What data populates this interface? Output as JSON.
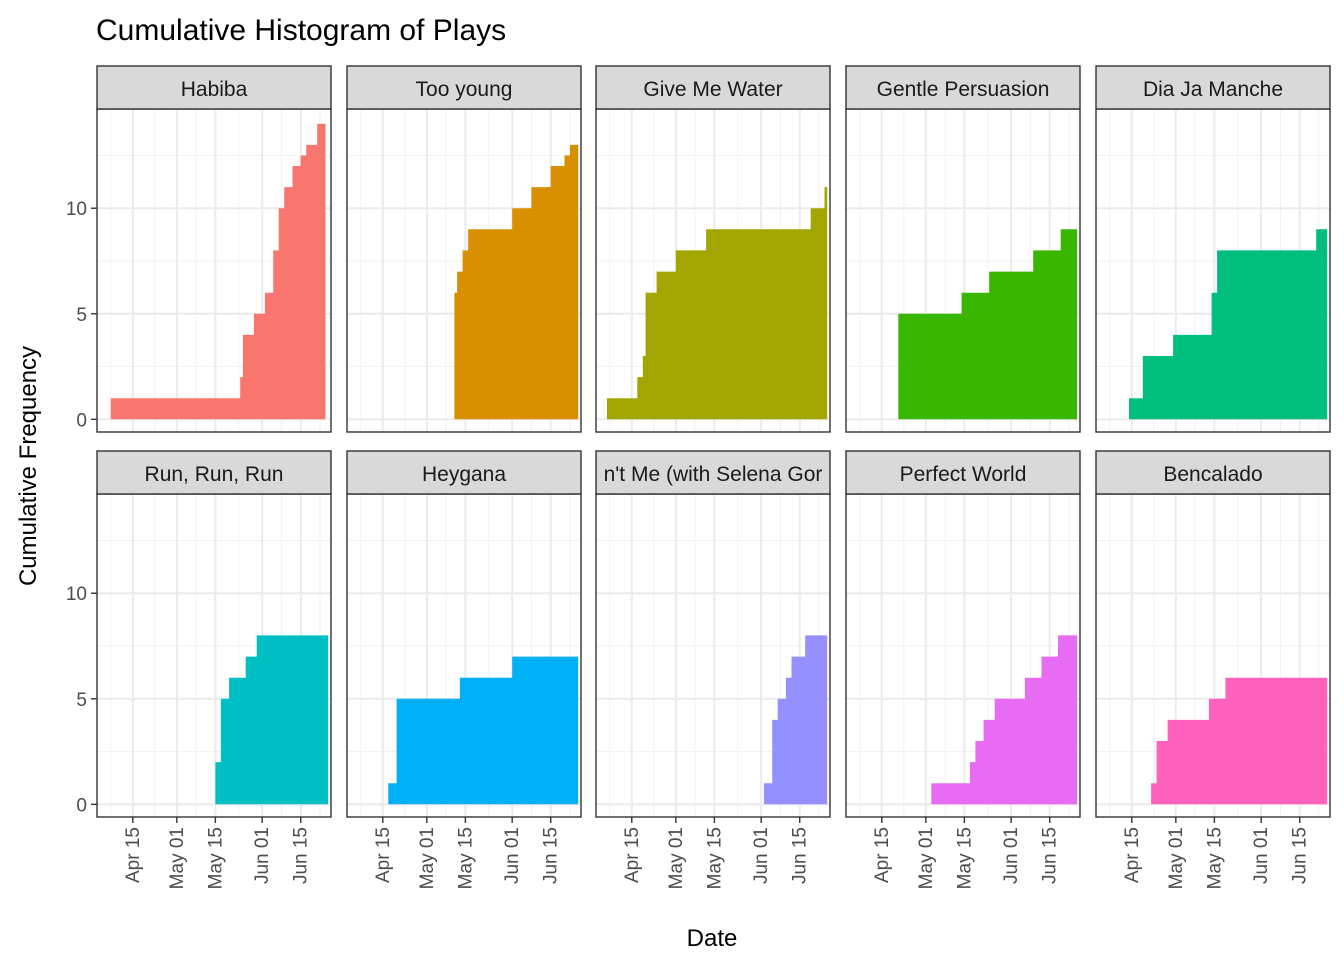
{
  "chart_data": {
    "type": "area",
    "title": "Cumulative Histogram of Plays",
    "xlabel": "Date",
    "ylabel": "Cumulative Frequency",
    "x_range": [
      "2020-04-02",
      "2020-06-26"
    ],
    "y_range": [
      -0.6,
      14.7
    ],
    "y_ticks": [
      0,
      5,
      10
    ],
    "x_ticks": [
      {
        "date": "2020-04-15",
        "label": "Apr 15"
      },
      {
        "date": "2020-05-01",
        "label": "May 01"
      },
      {
        "date": "2020-05-15",
        "label": "May 15"
      },
      {
        "date": "2020-06-01",
        "label": "Jun 01"
      },
      {
        "date": "2020-06-15",
        "label": "Jun 15"
      }
    ],
    "grid": true,
    "legend": "none",
    "facets": [
      {
        "name": "Habiba",
        "color": "#F8766D",
        "start": "2020-04-07",
        "end": "2020-06-24",
        "steps": [
          [
            "2020-04-07",
            1
          ],
          [
            "2020-05-24",
            2
          ],
          [
            "2020-05-25",
            4
          ],
          [
            "2020-05-29",
            5
          ],
          [
            "2020-06-02",
            6
          ],
          [
            "2020-06-05",
            8
          ],
          [
            "2020-06-07",
            10
          ],
          [
            "2020-06-09",
            11
          ],
          [
            "2020-06-12",
            12
          ],
          [
            "2020-06-15",
            12.5
          ],
          [
            "2020-06-17",
            13
          ],
          [
            "2020-06-21",
            14
          ]
        ]
      },
      {
        "name": "Too young",
        "color": "#D89000",
        "start": "2020-05-11",
        "end": "2020-06-25",
        "steps": [
          [
            "2020-05-11",
            6
          ],
          [
            "2020-05-12",
            7
          ],
          [
            "2020-05-14",
            8
          ],
          [
            "2020-05-16",
            9
          ],
          [
            "2020-06-01",
            10
          ],
          [
            "2020-06-08",
            11
          ],
          [
            "2020-06-15",
            12
          ],
          [
            "2020-06-20",
            12.5
          ],
          [
            "2020-06-22",
            13
          ]
        ]
      },
      {
        "name": "Give Me Water",
        "color": "#A3A500",
        "start": "2020-04-06",
        "end": "2020-06-25",
        "steps": [
          [
            "2020-04-06",
            1
          ],
          [
            "2020-04-17",
            2
          ],
          [
            "2020-04-19",
            3
          ],
          [
            "2020-04-20",
            6
          ],
          [
            "2020-04-24",
            7
          ],
          [
            "2020-05-01",
            8
          ],
          [
            "2020-05-12",
            9
          ],
          [
            "2020-06-19",
            10
          ],
          [
            "2020-06-24",
            11
          ]
        ]
      },
      {
        "name": "Gentle Persuasion",
        "color": "#39B600",
        "start": "2020-04-21",
        "end": "2020-06-25",
        "steps": [
          [
            "2020-04-21",
            5
          ],
          [
            "2020-05-14",
            6
          ],
          [
            "2020-05-24",
            7
          ],
          [
            "2020-06-09",
            8
          ],
          [
            "2020-06-19",
            9
          ],
          [
            "2020-06-25",
            10
          ]
        ]
      },
      {
        "name": "Dia Ja Manche",
        "color": "#00BF7D",
        "start": "2020-04-14",
        "end": "2020-06-25",
        "steps": [
          [
            "2020-04-14",
            1
          ],
          [
            "2020-04-19",
            3
          ],
          [
            "2020-04-30",
            4
          ],
          [
            "2020-05-14",
            6
          ],
          [
            "2020-05-16",
            8
          ],
          [
            "2020-06-21",
            9
          ]
        ]
      },
      {
        "name": "Run, Run, Run",
        "color": "#00BFC4",
        "start": "2020-05-15",
        "end": "2020-06-25",
        "steps": [
          [
            "2020-05-15",
            2
          ],
          [
            "2020-05-17",
            5
          ],
          [
            "2020-05-20",
            6
          ],
          [
            "2020-05-26",
            7
          ],
          [
            "2020-05-30",
            8
          ],
          [
            "2020-06-25",
            9
          ]
        ]
      },
      {
        "name": "Heygana",
        "color": "#00B0F6",
        "start": "2020-04-17",
        "end": "2020-06-25",
        "steps": [
          [
            "2020-04-17",
            1
          ],
          [
            "2020-04-20",
            5
          ],
          [
            "2020-05-13",
            6
          ],
          [
            "2020-06-01",
            7
          ],
          [
            "2020-06-25",
            8
          ]
        ]
      },
      {
        "name": "n't Me (with Selena Gor",
        "color": "#9590FF",
        "start": "2020-06-02",
        "end": "2020-06-25",
        "steps": [
          [
            "2020-06-02",
            1
          ],
          [
            "2020-06-05",
            4
          ],
          [
            "2020-06-07",
            5
          ],
          [
            "2020-06-10",
            6
          ],
          [
            "2020-06-12",
            7
          ],
          [
            "2020-06-17",
            8
          ]
        ]
      },
      {
        "name": "Perfect World",
        "color": "#E76BF3",
        "start": "2020-05-03",
        "end": "2020-06-25",
        "steps": [
          [
            "2020-05-03",
            1
          ],
          [
            "2020-05-17",
            2
          ],
          [
            "2020-05-19",
            3
          ],
          [
            "2020-05-22",
            4
          ],
          [
            "2020-05-26",
            5
          ],
          [
            "2020-06-06",
            6
          ],
          [
            "2020-06-12",
            7
          ],
          [
            "2020-06-18",
            8
          ]
        ]
      },
      {
        "name": "Bencalado",
        "color": "#FF62BC",
        "start": "2020-04-22",
        "end": "2020-06-25",
        "steps": [
          [
            "2020-04-22",
            1
          ],
          [
            "2020-04-24",
            3
          ],
          [
            "2020-04-28",
            4
          ],
          [
            "2020-05-13",
            5
          ],
          [
            "2020-05-19",
            6
          ],
          [
            "2020-06-25",
            7
          ]
        ]
      }
    ]
  }
}
